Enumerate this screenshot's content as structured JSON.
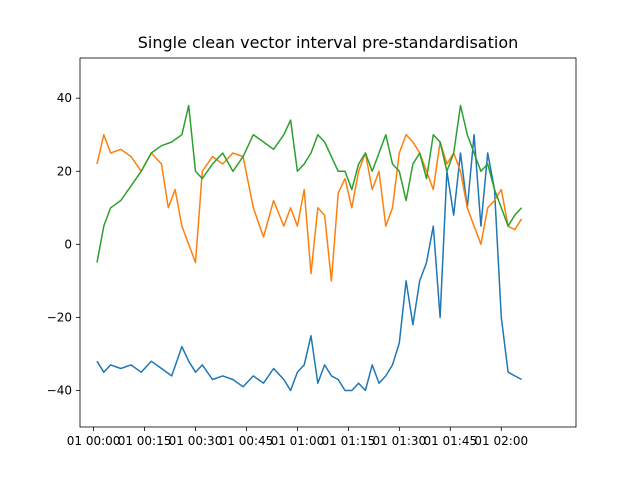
{
  "chart_data": {
    "type": "line",
    "title": "Single clean vector interval pre-standardisation",
    "xlabel": "",
    "ylabel": "",
    "x_unit": "minutes",
    "xlim": [
      -4,
      142
    ],
    "ylim": [
      -50,
      51
    ],
    "grid": false,
    "legend": "none",
    "x_ticks": [
      {
        "value": 0,
        "label": "01 00:00"
      },
      {
        "value": 15,
        "label": "01 00:15"
      },
      {
        "value": 30,
        "label": "01 00:30"
      },
      {
        "value": 45,
        "label": "01 00:45"
      },
      {
        "value": 60,
        "label": "01 01:00"
      },
      {
        "value": 75,
        "label": "01 01:15"
      },
      {
        "value": 90,
        "label": "01 01:30"
      },
      {
        "value": 105,
        "label": "01 01:45"
      },
      {
        "value": 120,
        "label": "01 02:00"
      }
    ],
    "y_ticks": [
      {
        "value": -40,
        "label": "−40"
      },
      {
        "value": -20,
        "label": "−20"
      },
      {
        "value": 0,
        "label": "0"
      },
      {
        "value": 20,
        "label": "20"
      },
      {
        "value": 40,
        "label": "40"
      }
    ],
    "series": [
      {
        "color": "#1f77b4",
        "x": [
          1,
          3,
          5,
          8,
          11,
          14,
          17,
          20,
          23,
          26,
          28,
          30,
          32,
          35,
          38,
          41,
          44,
          47,
          50,
          53,
          56,
          58,
          60,
          62,
          64,
          66,
          68,
          70,
          72,
          74,
          76,
          78,
          80,
          82,
          84,
          86,
          88,
          90,
          92,
          94,
          96,
          98,
          100,
          102,
          104,
          106,
          108,
          110,
          112,
          114,
          116,
          118,
          120,
          122,
          124,
          126
        ],
        "y": [
          -32,
          -35,
          -33,
          -34,
          -33,
          -35,
          -32,
          -34,
          -36,
          -28,
          -32,
          -35,
          -33,
          -37,
          -36,
          -37,
          -39,
          -36,
          -38,
          -34,
          -37,
          -40,
          -35,
          -33,
          -25,
          -38,
          -33,
          -36,
          -37,
          -40,
          -40,
          -38,
          -40,
          -33,
          -38,
          -36,
          -33,
          -27,
          -10,
          -22,
          -10,
          -5,
          5,
          -20,
          20,
          8,
          25,
          10,
          30,
          5,
          25,
          15,
          -20,
          -35,
          -36,
          -37
        ]
      },
      {
        "color": "#ff7f0e",
        "x": [
          1,
          3,
          5,
          8,
          11,
          14,
          17,
          20,
          22,
          24,
          26,
          28,
          30,
          32,
          35,
          38,
          41,
          44,
          47,
          50,
          53,
          56,
          58,
          60,
          62,
          64,
          66,
          68,
          70,
          72,
          74,
          76,
          78,
          80,
          82,
          84,
          86,
          88,
          90,
          92,
          94,
          96,
          98,
          100,
          102,
          104,
          106,
          108,
          110,
          112,
          114,
          116,
          118,
          120,
          122,
          124,
          126
        ],
        "y": [
          22,
          30,
          25,
          26,
          24,
          20,
          25,
          22,
          10,
          15,
          5,
          0,
          -5,
          20,
          24,
          22,
          25,
          24,
          10,
          2,
          12,
          5,
          10,
          5,
          15,
          -8,
          10,
          8,
          -10,
          14,
          18,
          10,
          20,
          25,
          15,
          20,
          5,
          10,
          25,
          30,
          28,
          25,
          20,
          15,
          28,
          22,
          25,
          20,
          10,
          5,
          0,
          10,
          12,
          15,
          5,
          4,
          7
        ]
      },
      {
        "color": "#2ca02c",
        "x": [
          1,
          3,
          5,
          8,
          11,
          14,
          17,
          20,
          23,
          26,
          28,
          30,
          32,
          35,
          38,
          41,
          44,
          47,
          50,
          53,
          56,
          58,
          60,
          62,
          64,
          66,
          68,
          70,
          72,
          74,
          76,
          78,
          80,
          82,
          84,
          86,
          88,
          90,
          92,
          94,
          96,
          98,
          100,
          102,
          104,
          106,
          108,
          110,
          112,
          114,
          116,
          118,
          120,
          122,
          124,
          126
        ],
        "y": [
          -5,
          5,
          10,
          12,
          16,
          20,
          25,
          27,
          28,
          30,
          38,
          20,
          18,
          22,
          25,
          20,
          24,
          30,
          28,
          26,
          30,
          34,
          20,
          22,
          25,
          30,
          28,
          24,
          20,
          20,
          15,
          22,
          25,
          20,
          25,
          30,
          22,
          20,
          12,
          22,
          25,
          18,
          30,
          28,
          20,
          25,
          38,
          30,
          25,
          20,
          22,
          15,
          10,
          5,
          8,
          10
        ]
      }
    ]
  }
}
